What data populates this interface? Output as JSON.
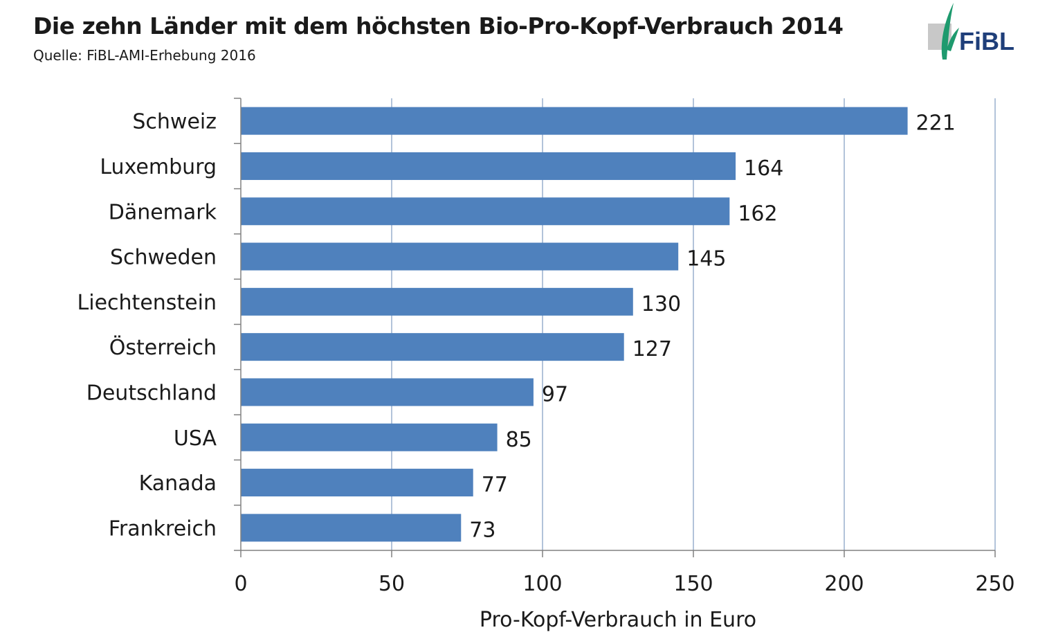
{
  "header": {
    "title": "Die zehn Länder mit dem höchsten Bio-Pro-Kopf-Verbrauch 2014",
    "subtitle": "Quelle: FiBL-AMI-Erhebung 2016",
    "logo_text": "FiBL"
  },
  "colors": {
    "bar": "#4f81bd",
    "grid": "#7f9bc0",
    "axis": "#808080",
    "logo_leaf": "#1e9a6e",
    "logo_text": "#1f3f7a"
  },
  "chart_data": {
    "type": "bar",
    "orientation": "horizontal",
    "categories": [
      "Schweiz",
      "Luxemburg",
      "Dänemark",
      "Schweden",
      "Liechtenstein",
      "Österreich",
      "Deutschland",
      "USA",
      "Kanada",
      "Frankreich"
    ],
    "values": [
      221,
      164,
      162,
      145,
      130,
      127,
      97,
      85,
      77,
      73
    ],
    "xlabel": "Pro-Kopf-Verbrauch in Euro",
    "xlim": [
      0,
      250
    ],
    "xticks": [
      0,
      50,
      100,
      150,
      200,
      250
    ],
    "grid": true
  }
}
